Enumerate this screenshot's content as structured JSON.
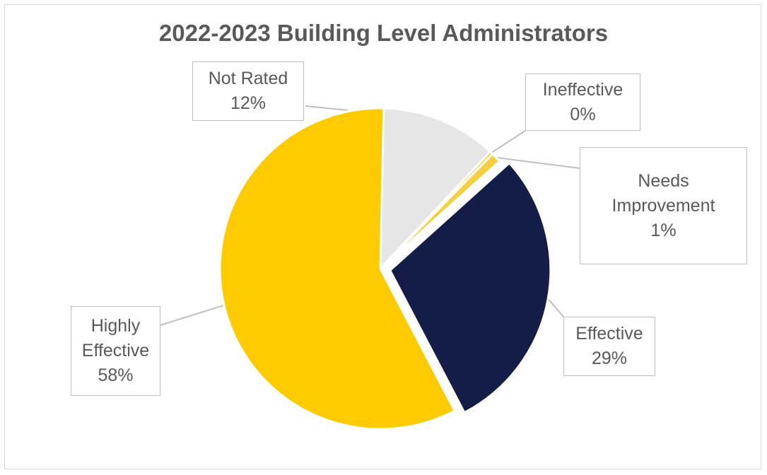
{
  "chart_data": {
    "type": "pie",
    "title": "2022-2023 Building Level Administrators",
    "slices": [
      {
        "label_lines": [
          "Not Rated"
        ],
        "value": 12,
        "value_label": "12%",
        "color": "#e6e6e6",
        "exploded": false
      },
      {
        "label_lines": [
          "Ineffective"
        ],
        "value": 0,
        "value_label": "0%",
        "color": "#fdd20a",
        "exploded": false
      },
      {
        "label_lines": [
          "Needs",
          "Improvement"
        ],
        "value": 1,
        "value_label": "1%",
        "color": "#f5cf3e",
        "exploded": false
      },
      {
        "label_lines": [
          "Effective"
        ],
        "value": 29,
        "value_label": "29%",
        "color": "#141c48",
        "exploded": true
      },
      {
        "label_lines": [
          "Highly",
          "Effective"
        ],
        "value": 58,
        "value_label": "58%",
        "color": "#fecb00",
        "exploded": false
      }
    ]
  }
}
